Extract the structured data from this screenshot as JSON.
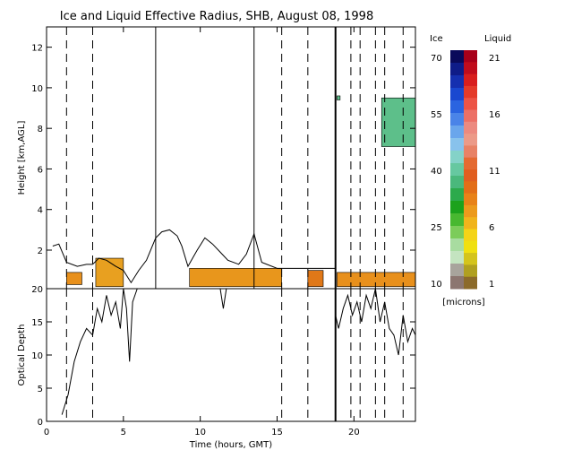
{
  "chart_data": {
    "type": "heatmap",
    "title": "Ice and Liquid Effective Radius, SHB, August 08, 1998",
    "x": {
      "label": "Time (hours, GMT)",
      "range": [
        0,
        24
      ],
      "ticks": [
        {
          "value": 0,
          "label": "0"
        },
        {
          "value": 5,
          "label": "5"
        },
        {
          "value": 10,
          "label": "10"
        },
        {
          "value": 15,
          "label": "15"
        },
        {
          "value": 20,
          "label": "20"
        }
      ]
    },
    "panels": [
      {
        "name": "height",
        "ylabel": "Height [km,AGL]",
        "ylim": [
          0.1,
          13
        ],
        "ticks": [
          {
            "value": 2,
            "label": "2"
          },
          {
            "value": 4,
            "label": "4"
          },
          {
            "value": 6,
            "label": "6"
          },
          {
            "value": 8,
            "label": "8"
          },
          {
            "value": 10,
            "label": "10"
          },
          {
            "value": 12,
            "label": "12"
          }
        ],
        "solid_lines": [
          7.1,
          13.5,
          18.8
        ],
        "dashed_lines": [
          1.3,
          3.0,
          15.3,
          17.0,
          19.8,
          20.4,
          21.4,
          22.0,
          23.2
        ],
        "regions": [
          {
            "phase": "liquid",
            "t0": 1.3,
            "t1": 2.3,
            "z0": 0.3,
            "z1": 0.9,
            "color": "#e8901c"
          },
          {
            "phase": "liquid",
            "t0": 3.2,
            "t1": 5.0,
            "z0": 0.2,
            "z1": 1.6,
            "color": "#e8a020"
          },
          {
            "phase": "liquid",
            "t0": 9.3,
            "t1": 15.3,
            "z0": 0.2,
            "z1": 1.1,
            "color": "#e8961c"
          },
          {
            "phase": "liquid",
            "t0": 17.0,
            "t1": 18.0,
            "z0": 0.2,
            "z1": 1.0,
            "color": "#e07818"
          },
          {
            "phase": "liquid",
            "t0": 18.9,
            "t1": 24.0,
            "z0": 0.2,
            "z1": 0.9,
            "color": "#e8901c"
          },
          {
            "phase": "ice",
            "t0": 21.8,
            "t1": 24.0,
            "z0": 7.1,
            "z1": 9.5,
            "color": "#5dbf8a"
          },
          {
            "phase": "ice",
            "t0": 18.9,
            "t1": 19.1,
            "z0": 9.4,
            "z1": 9.6,
            "color": "#5dbf8a"
          }
        ],
        "outline": [
          [
            0.4,
            2.2
          ],
          [
            0.8,
            2.3
          ],
          [
            1.3,
            1.4
          ],
          [
            2.0,
            1.2
          ],
          [
            2.6,
            1.3
          ],
          [
            3.0,
            1.3
          ],
          [
            3.4,
            1.6
          ],
          [
            3.9,
            1.5
          ],
          [
            4.5,
            1.2
          ],
          [
            5.0,
            1.0
          ],
          [
            5.5,
            0.4
          ],
          [
            6.0,
            1.0
          ],
          [
            6.5,
            1.5
          ],
          [
            7.1,
            2.6
          ],
          [
            7.5,
            2.9
          ],
          [
            8.0,
            3.0
          ],
          [
            8.5,
            2.7
          ],
          [
            8.8,
            2.2
          ],
          [
            9.2,
            1.2
          ],
          [
            9.8,
            2.0
          ],
          [
            10.3,
            2.6
          ],
          [
            10.8,
            2.3
          ],
          [
            11.3,
            1.9
          ],
          [
            11.8,
            1.5
          ],
          [
            12.5,
            1.3
          ],
          [
            13.0,
            1.8
          ],
          [
            13.5,
            2.8
          ],
          [
            14.0,
            1.4
          ],
          [
            15.0,
            1.1
          ],
          [
            17.0,
            1.1
          ],
          [
            18.8,
            1.1
          ]
        ]
      },
      {
        "name": "optical_depth",
        "ylabel": "Optical Depth",
        "ylim": [
          0,
          20
        ],
        "ticks": [
          {
            "value": 0,
            "label": "0"
          },
          {
            "value": 5,
            "label": "5"
          },
          {
            "value": 10,
            "label": "10"
          },
          {
            "value": 15,
            "label": "15"
          },
          {
            "value": 20,
            "label": "20"
          }
        ],
        "solid_lines": [
          18.8
        ],
        "dashed_lines": [
          1.3,
          3.0,
          15.3,
          17.0,
          19.8,
          20.4,
          21.4,
          22.0,
          23.2
        ],
        "series": [
          {
            "x": [
              1.0,
              1.4,
              1.8,
              2.2,
              2.6,
              3.0,
              3.3,
              3.6,
              3.9,
              4.2,
              4.5,
              4.8,
              5.0,
              5.2,
              5.4,
              5.6,
              5.9
            ],
            "y": [
              1,
              4,
              9,
              12,
              14,
              13,
              17,
              15,
              19,
              16,
              18,
              14,
              20,
              17,
              9,
              18,
              20
            ]
          },
          {
            "x": [
              11.3,
              11.5,
              11.7
            ],
            "y": [
              20,
              17,
              20
            ]
          },
          {
            "x": [
              18.8,
              19.0,
              19.3,
              19.6,
              19.9,
              20.2,
              20.5,
              20.8,
              21.1,
              21.4,
              21.7,
              22.0,
              22.3,
              22.6,
              22.9,
              23.2,
              23.5,
              23.8,
              24.0
            ],
            "y": [
              16,
              14,
              17,
              19,
              16,
              18,
              15,
              19,
              17,
              20,
              15,
              18,
              14,
              13,
              10,
              16,
              12,
              14,
              13
            ]
          }
        ]
      }
    ],
    "colorbar": {
      "ice_label": "Ice",
      "liquid_label": "Liquid",
      "units": "[microns]",
      "ice_ticks": [
        "70",
        "55",
        "40",
        "25",
        "10"
      ],
      "liquid_ticks": [
        "21",
        "16",
        "11",
        "6",
        "1"
      ],
      "ice_colors": [
        "#0a0a5a",
        "#0f1c88",
        "#1530b0",
        "#1a48d0",
        "#2a64e0",
        "#4a84e8",
        "#6aa6ec",
        "#88c2ec",
        "#84d2c8",
        "#66c8a0",
        "#4ab87c",
        "#2caa4c",
        "#1ca21c",
        "#48b830",
        "#7ccc5a",
        "#a8dca0",
        "#c4e4c0",
        "#a8a49c",
        "#8c7670"
      ],
      "liquid_colors": [
        "#a8001a",
        "#c00c1c",
        "#d81e1e",
        "#e43a2a",
        "#ec5446",
        "#ec7066",
        "#ec8a80",
        "#ec9a88",
        "#e88266",
        "#e46a32",
        "#e05e20",
        "#e26e18",
        "#e88218",
        "#ec9a1c",
        "#f0b41c",
        "#f4d418",
        "#f0e010",
        "#d4c41c",
        "#b0a020",
        "#8c6a2a"
      ]
    }
  }
}
